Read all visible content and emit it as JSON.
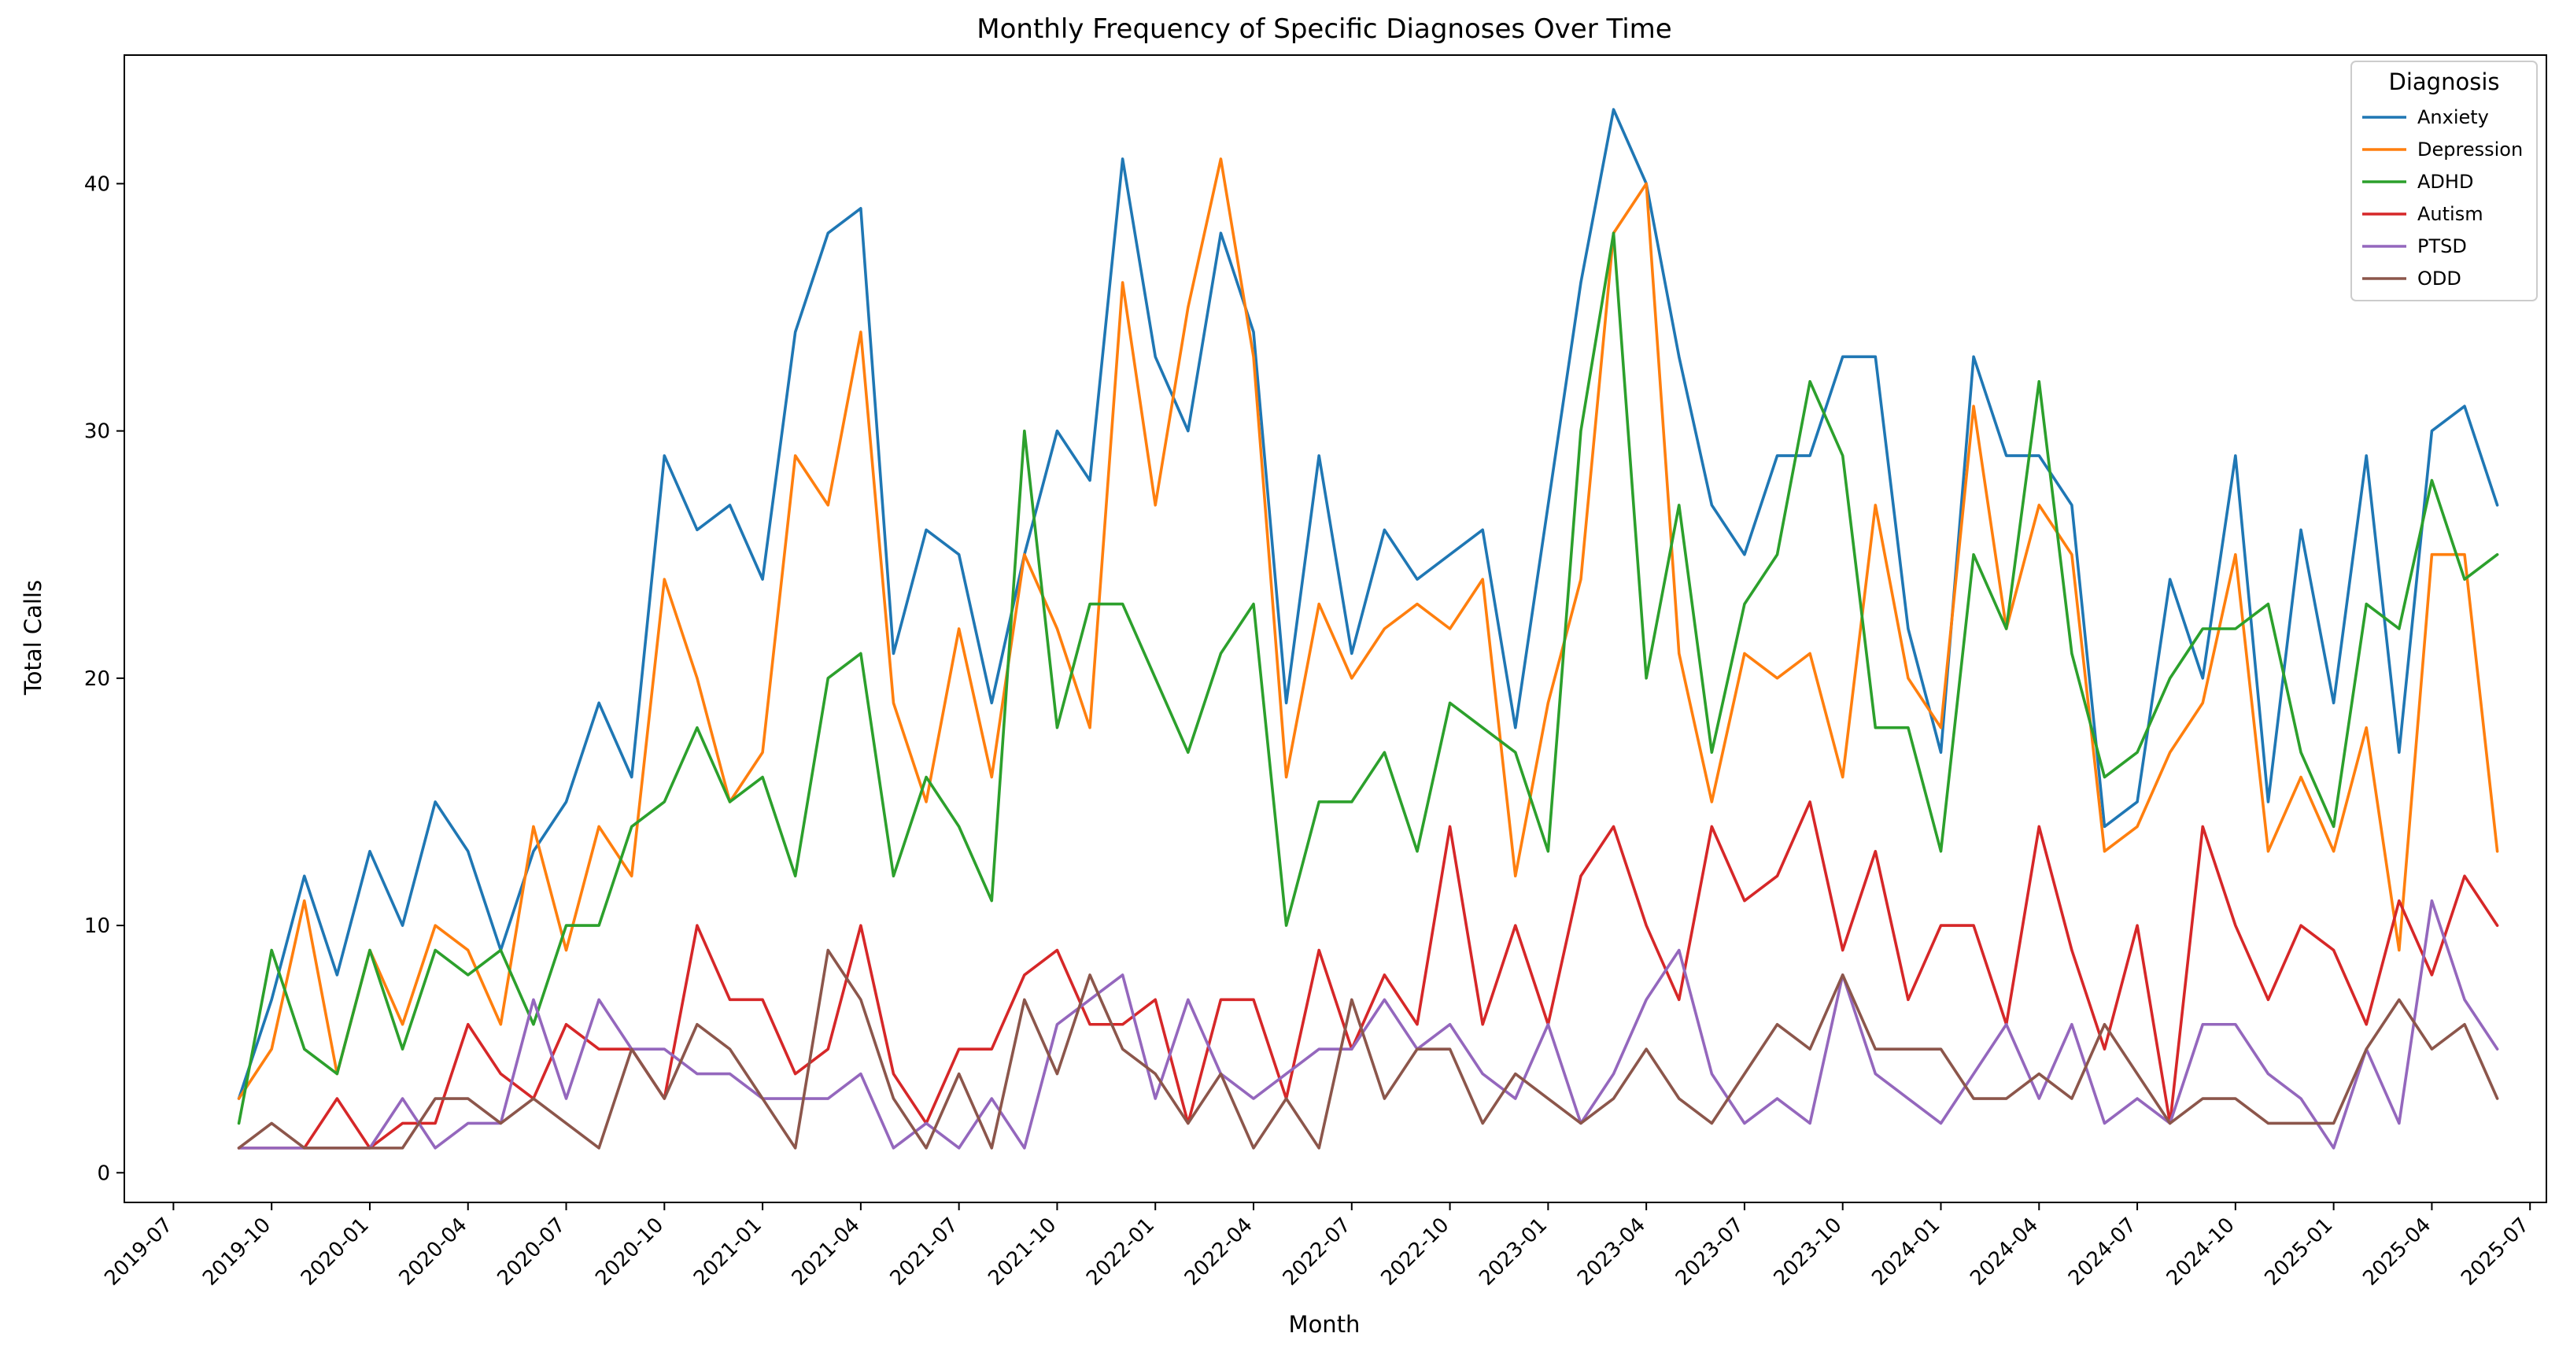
{
  "chart_data": {
    "type": "line",
    "title": "Monthly Frequency of Specific Diagnoses Over Time",
    "xlabel": "Month",
    "ylabel": "Total Calls",
    "x_start": "2019-09",
    "x_range_months": [
      -3.5,
      70.5
    ],
    "ylim": [
      -1.2,
      45.2
    ],
    "y_ticks": [
      0,
      10,
      20,
      30,
      40
    ],
    "x_ticks": [
      {
        "label": "2019-07",
        "offset": -2
      },
      {
        "label": "2019-10",
        "offset": 1
      },
      {
        "label": "2020-01",
        "offset": 4
      },
      {
        "label": "2020-04",
        "offset": 7
      },
      {
        "label": "2020-07",
        "offset": 10
      },
      {
        "label": "2020-10",
        "offset": 13
      },
      {
        "label": "2021-01",
        "offset": 16
      },
      {
        "label": "2021-04",
        "offset": 19
      },
      {
        "label": "2021-07",
        "offset": 22
      },
      {
        "label": "2021-10",
        "offset": 25
      },
      {
        "label": "2022-01",
        "offset": 28
      },
      {
        "label": "2022-04",
        "offset": 31
      },
      {
        "label": "2022-07",
        "offset": 34
      },
      {
        "label": "2022-10",
        "offset": 37
      },
      {
        "label": "2023-01",
        "offset": 40
      },
      {
        "label": "2023-04",
        "offset": 43
      },
      {
        "label": "2023-07",
        "offset": 46
      },
      {
        "label": "2023-10",
        "offset": 49
      },
      {
        "label": "2024-01",
        "offset": 52
      },
      {
        "label": "2024-04",
        "offset": 55
      },
      {
        "label": "2024-07",
        "offset": 58
      },
      {
        "label": "2024-10",
        "offset": 61
      },
      {
        "label": "2025-01",
        "offset": 64
      },
      {
        "label": "2025-04",
        "offset": 67
      },
      {
        "label": "2025-07",
        "offset": 70
      }
    ],
    "legend": {
      "title": "Diagnosis",
      "position": "top-right"
    },
    "series": [
      {
        "name": "Anxiety",
        "color": "#1f77b4",
        "values": [
          3,
          7,
          12,
          8,
          13,
          10,
          15,
          13,
          9,
          13,
          15,
          19,
          16,
          29,
          26,
          27,
          24,
          34,
          38,
          39,
          21,
          26,
          25,
          19,
          25,
          30,
          28,
          41,
          33,
          30,
          38,
          34,
          19,
          29,
          21,
          26,
          24,
          25,
          26,
          18,
          27,
          36,
          43,
          40,
          33,
          27,
          25,
          29,
          29,
          33,
          33,
          22,
          17,
          33,
          29,
          29,
          27,
          14,
          15,
          24,
          20,
          29,
          15,
          26,
          19,
          29,
          17,
          30,
          31,
          27
        ]
      },
      {
        "name": "Depression",
        "color": "#ff7f0e",
        "values": [
          3,
          5,
          11,
          4,
          9,
          6,
          10,
          9,
          6,
          14,
          9,
          14,
          12,
          24,
          20,
          15,
          17,
          29,
          27,
          34,
          19,
          15,
          22,
          16,
          25,
          22,
          18,
          36,
          27,
          35,
          41,
          33,
          16,
          23,
          20,
          22,
          23,
          22,
          24,
          12,
          19,
          24,
          38,
          40,
          21,
          15,
          21,
          20,
          21,
          16,
          27,
          20,
          18,
          31,
          22,
          27,
          25,
          13,
          14,
          17,
          19,
          25,
          13,
          16,
          13,
          18,
          9,
          25,
          25,
          13
        ]
      },
      {
        "name": "ADHD",
        "color": "#2ca02c",
        "values": [
          2,
          9,
          5,
          4,
          9,
          5,
          9,
          8,
          9,
          6,
          10,
          10,
          14,
          15,
          18,
          15,
          16,
          12,
          20,
          21,
          12,
          16,
          14,
          11,
          30,
          18,
          23,
          23,
          20,
          17,
          21,
          23,
          10,
          15,
          15,
          17,
          13,
          19,
          18,
          17,
          13,
          30,
          38,
          20,
          27,
          17,
          23,
          25,
          32,
          29,
          18,
          18,
          13,
          25,
          22,
          32,
          21,
          16,
          17,
          20,
          22,
          22,
          23,
          17,
          14,
          23,
          22,
          28,
          24,
          25
        ]
      },
      {
        "name": "Autism",
        "color": "#d62728",
        "values": [
          1,
          1,
          1,
          3,
          1,
          2,
          2,
          6,
          4,
          3,
          6,
          5,
          5,
          3,
          10,
          7,
          7,
          4,
          5,
          10,
          4,
          2,
          5,
          5,
          8,
          9,
          6,
          6,
          7,
          2,
          7,
          7,
          3,
          9,
          5,
          8,
          6,
          14,
          6,
          10,
          6,
          12,
          14,
          10,
          7,
          14,
          11,
          12,
          15,
          9,
          13,
          7,
          10,
          10,
          6,
          14,
          9,
          5,
          10,
          2,
          14,
          10,
          7,
          10,
          9,
          6,
          11,
          8,
          12,
          10
        ]
      },
      {
        "name": "PTSD",
        "color": "#9467bd",
        "values": [
          1,
          1,
          1,
          1,
          1,
          3,
          1,
          2,
          2,
          7,
          3,
          7,
          5,
          5,
          4,
          4,
          3,
          3,
          3,
          4,
          1,
          2,
          1,
          3,
          1,
          6,
          7,
          8,
          3,
          7,
          4,
          3,
          4,
          5,
          5,
          7,
          5,
          6,
          4,
          3,
          6,
          2,
          4,
          7,
          9,
          4,
          2,
          3,
          2,
          8,
          4,
          3,
          2,
          4,
          6,
          3,
          6,
          2,
          3,
          2,
          6,
          6,
          4,
          3,
          1,
          5,
          2,
          11,
          7,
          5
        ]
      },
      {
        "name": "ODD",
        "color": "#8c564b",
        "values": [
          1,
          2,
          1,
          1,
          1,
          1,
          3,
          3,
          2,
          3,
          2,
          1,
          5,
          3,
          6,
          5,
          3,
          1,
          9,
          7,
          3,
          1,
          4,
          1,
          7,
          4,
          8,
          5,
          4,
          2,
          4,
          1,
          3,
          1,
          7,
          3,
          5,
          5,
          2,
          4,
          3,
          2,
          3,
          5,
          3,
          2,
          4,
          6,
          5,
          8,
          5,
          5,
          5,
          3,
          3,
          4,
          3,
          6,
          4,
          2,
          3,
          3,
          2,
          2,
          2,
          5,
          7,
          5,
          6,
          3
        ]
      }
    ]
  }
}
